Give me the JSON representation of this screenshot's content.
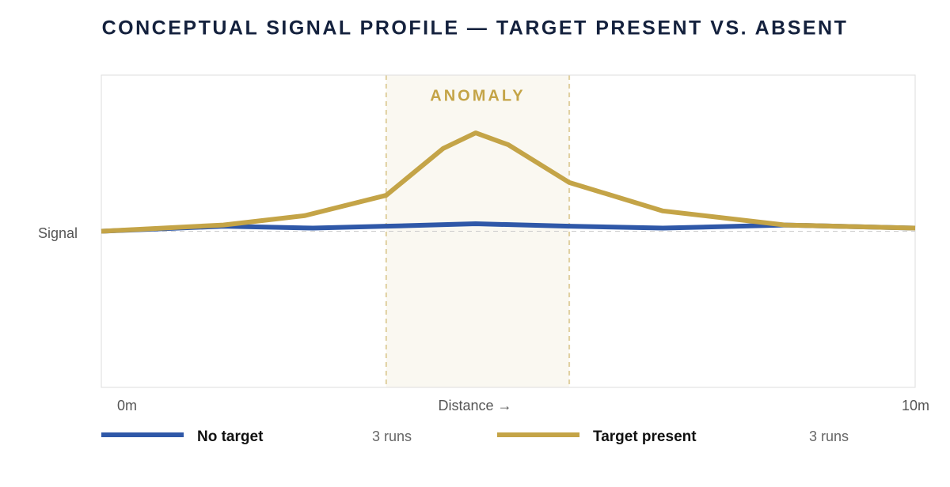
{
  "chart_data": {
    "type": "line",
    "title": "CONCEPTUAL SIGNAL PROFILE — TARGET PRESENT VS. ABSENT",
    "ylabel": "Signal",
    "xlabel": "Distance →",
    "xlim": [
      0,
      10
    ],
    "xticks": [
      {
        "value": 0,
        "label": "0m"
      },
      {
        "value": 10,
        "label": "10m"
      }
    ],
    "ylim": [
      0,
      100
    ],
    "baseline": 50,
    "band": {
      "label": "ANOMALY",
      "range": [
        3.5,
        5.75
      ],
      "color": "#c4a447"
    },
    "series": [
      {
        "name": "No target",
        "runs_label": "3 runs",
        "color": "#2f58a8",
        "x": [
          0,
          1.5,
          2.6,
          3.5,
          4.6,
          5.75,
          6.9,
          8.4,
          10
        ],
        "values": [
          50,
          51.6,
          51,
          51.6,
          52.4,
          51.6,
          51,
          52,
          51
        ]
      },
      {
        "name": "Target present",
        "runs_label": "3 runs",
        "color": "#c4a447",
        "x": [
          0,
          1.5,
          2.5,
          3.5,
          4.2,
          4.6,
          5,
          5.75,
          6.9,
          8.4,
          10
        ],
        "values": [
          50,
          52,
          55,
          61.5,
          76.5,
          81.5,
          77.7,
          65.6,
          56.5,
          52,
          51
        ]
      }
    ]
  }
}
